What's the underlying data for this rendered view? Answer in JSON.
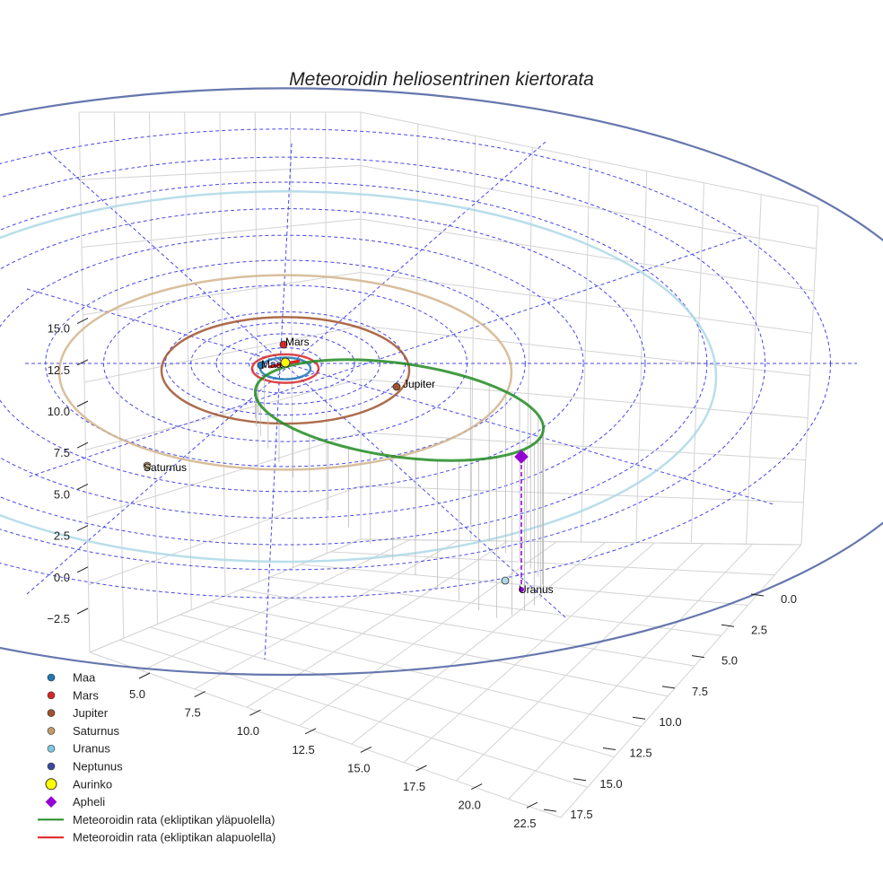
{
  "chart_data": {
    "type": "scatter3d",
    "title": "Meteoroidin heliosentrinen kiertorata",
    "axes": {
      "x_ticks": [
        "5.0",
        "7.5",
        "10.0",
        "12.5",
        "15.0",
        "17.5",
        "20.0",
        "22.5"
      ],
      "y_ticks": [
        "0.0",
        "2.5",
        "5.0",
        "7.5",
        "10.0",
        "12.5",
        "15.0",
        "17.5"
      ],
      "z_ticks": [
        "−2.5",
        "0.0",
        "2.5",
        "5.0",
        "7.5",
        "10.0",
        "12.5",
        "15.0"
      ],
      "grid": true
    },
    "bodies": [
      {
        "name": "Maa",
        "label": "Maa",
        "color": "#1f77b4",
        "orbit_au": 1.0
      },
      {
        "name": "Mars",
        "label": "Mars",
        "color": "#d62728",
        "orbit_au": 1.52
      },
      {
        "name": "Jupiter",
        "label": "Jupiter",
        "color": "#a0522d",
        "orbit_au": 5.2
      },
      {
        "name": "Saturnus",
        "label": "Saturnus",
        "color": "#d2b48c",
        "orbit_au": 9.5
      },
      {
        "name": "Uranus",
        "label": "Uranus",
        "color": "#add8e6",
        "orbit_au": 19.2
      },
      {
        "name": "Neptunus",
        "label": "",
        "color": "#4b5fa0",
        "orbit_au": 30.1
      }
    ],
    "legend": {
      "placement": "bottom-left",
      "entries": [
        {
          "label": "Maa",
          "marker": "circle",
          "color": "#1f77b4"
        },
        {
          "label": "Mars",
          "marker": "circle",
          "color": "#d62728"
        },
        {
          "label": "Jupiter",
          "marker": "circle",
          "color": "#a0522d"
        },
        {
          "label": "Saturnus",
          "marker": "circle",
          "color": "#c49a6c"
        },
        {
          "label": "Uranus",
          "marker": "circle",
          "color": "#7ec8e3"
        },
        {
          "label": "Neptunus",
          "marker": "circle",
          "color": "#3b4a9c"
        },
        {
          "label": "Aurinko",
          "marker": "sun",
          "color": "#ffff00"
        },
        {
          "label": "Apheli",
          "marker": "diamond",
          "color": "#9400d3"
        },
        {
          "label": "Meteoroidin rata (ekliptikan yläpuolella)",
          "marker": "line",
          "color": "#228b22"
        },
        {
          "label": "Meteoroidin rata (ekliptikan alapuolella)",
          "marker": "line",
          "color": "#e31a1c"
        }
      ]
    }
  }
}
